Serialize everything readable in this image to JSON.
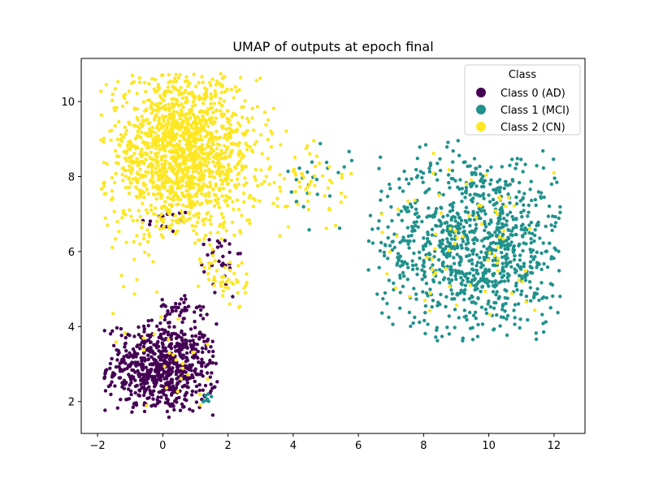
{
  "chart_data": {
    "type": "scatter",
    "title": "UMAP of outputs at epoch final",
    "xlabel": "",
    "ylabel": "",
    "xlim": [
      -2.5,
      12.95
    ],
    "ylim": [
      1.15,
      11.15
    ],
    "xticks": [
      -2,
      0,
      2,
      4,
      6,
      8,
      10,
      12
    ],
    "yticks": [
      2,
      4,
      6,
      8,
      10
    ],
    "grid": false,
    "legend": {
      "title": "Class",
      "placement": "top-right"
    },
    "series": [
      {
        "name": "Class 0 (AD)",
        "color": "#440154",
        "clusters": [
          {
            "cx": 0.0,
            "cy": 2.9,
            "sx": 0.85,
            "sy": 0.6,
            "n": 700,
            "xmin": -1.8,
            "xmax": 1.7,
            "ymin": 1.55,
            "ymax": 4.3
          },
          {
            "cx": 0.5,
            "cy": 4.5,
            "sx": 0.45,
            "sy": 0.2,
            "n": 40,
            "xmin": -0.3,
            "xmax": 1.5,
            "ymin": 4.1,
            "ymax": 4.9
          },
          {
            "cx": 1.7,
            "cy": 5.6,
            "sx": 0.35,
            "sy": 0.5,
            "n": 30,
            "xmin": 1.0,
            "xmax": 2.4,
            "ymin": 4.5,
            "ymax": 6.6
          },
          {
            "cx": 0.0,
            "cy": 6.9,
            "sx": 0.6,
            "sy": 0.2,
            "n": 15,
            "xmin": -1.0,
            "xmax": 1.2,
            "ymin": 6.0,
            "ymax": 7.2
          }
        ]
      },
      {
        "name": "Class 1 (MCI)",
        "color": "#21918c",
        "clusters": [
          {
            "cx": 9.6,
            "cy": 6.2,
            "sx": 1.45,
            "sy": 1.25,
            "n": 1000,
            "xmin": 6.3,
            "xmax": 12.2,
            "ymin": 3.6,
            "ymax": 9.0
          },
          {
            "cx": 4.8,
            "cy": 7.8,
            "sx": 0.5,
            "sy": 0.6,
            "n": 25,
            "xmin": 3.5,
            "xmax": 5.8,
            "ymin": 6.4,
            "ymax": 9.2
          },
          {
            "cx": 1.4,
            "cy": 2.1,
            "sx": 0.1,
            "sy": 0.1,
            "n": 8,
            "xmin": 1.1,
            "xmax": 1.6,
            "ymin": 1.9,
            "ymax": 2.3
          }
        ]
      },
      {
        "name": "Class 2 (CN)",
        "color": "#fde725",
        "clusters": [
          {
            "cx": 0.6,
            "cy": 8.6,
            "sx": 1.15,
            "sy": 1.05,
            "n": 1500,
            "xmin": -1.9,
            "xmax": 3.9,
            "ymin": 6.2,
            "ymax": 10.75
          },
          {
            "cx": 4.6,
            "cy": 7.7,
            "sx": 0.6,
            "sy": 0.6,
            "n": 50,
            "xmin": 3.2,
            "xmax": 5.8,
            "ymin": 6.2,
            "ymax": 9.0
          },
          {
            "cx": 1.9,
            "cy": 5.3,
            "sx": 0.35,
            "sy": 0.45,
            "n": 50,
            "xmin": 1.0,
            "xmax": 2.6,
            "ymin": 4.5,
            "ymax": 6.2
          },
          {
            "cx": 9.5,
            "cy": 6.0,
            "sx": 1.6,
            "sy": 1.4,
            "n": 70,
            "xmin": 6.5,
            "xmax": 12.0,
            "ymin": 4.0,
            "ymax": 8.8
          },
          {
            "cx": -0.8,
            "cy": 5.5,
            "sx": 0.7,
            "sy": 0.6,
            "n": 14,
            "xmin": -1.6,
            "xmax": 0.3,
            "ymin": 4.0,
            "ymax": 6.6
          },
          {
            "cx": 0.4,
            "cy": 3.0,
            "sx": 0.9,
            "sy": 0.7,
            "n": 25,
            "xmin": -1.5,
            "xmax": 1.7,
            "ymin": 1.8,
            "ymax": 4.3
          }
        ]
      }
    ]
  }
}
